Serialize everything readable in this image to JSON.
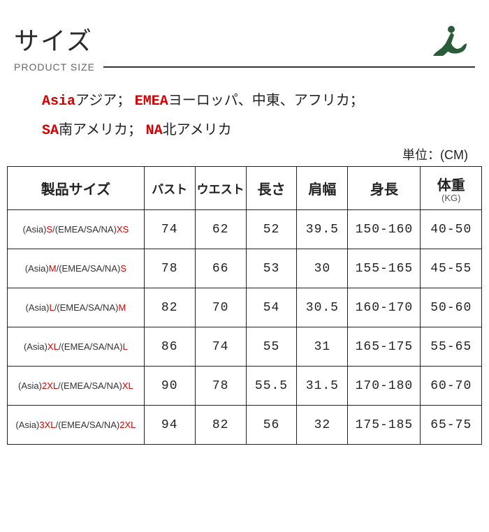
{
  "title": "サイズ",
  "subtitle": "PRODUCT SIZE",
  "regions": {
    "line1_asia_code": "Asia",
    "line1_asia_text": "アジア；",
    "line1_emea_code": "EMEA",
    "line1_emea_text": "ヨーロッパ、中東、アフリカ；",
    "line2_sa_code": "SA",
    "line2_sa_text": "南アメリカ；",
    "line2_na_code": "NA",
    "line2_na_text": "北アメリカ"
  },
  "unit_label": "単位：(CM)",
  "columns": {
    "size": "製品サイズ",
    "bust": "バスト",
    "waist": "ウエスト",
    "length": "長さ",
    "shoulder": "肩幅",
    "height": "身長",
    "weight": "体重",
    "weight_sub": "(KG)"
  },
  "rows": [
    {
      "asia": "S",
      "other": "XS",
      "bust": "74",
      "waist": "62",
      "length": "52",
      "shoulder": "39.5",
      "height": "150-160",
      "weight": "40-50"
    },
    {
      "asia": "M",
      "other": "S",
      "bust": "78",
      "waist": "66",
      "length": "53",
      "shoulder": "30",
      "height": "155-165",
      "weight": "45-55"
    },
    {
      "asia": "L",
      "other": "M",
      "bust": "82",
      "waist": "70",
      "length": "54",
      "shoulder": "30.5",
      "height": "160-170",
      "weight": "50-60"
    },
    {
      "asia": "XL",
      "other": "L",
      "bust": "86",
      "waist": "74",
      "length": "55",
      "shoulder": "31",
      "height": "165-175",
      "weight": "55-65"
    },
    {
      "asia": "2XL",
      "other": "XL",
      "bust": "90",
      "waist": "78",
      "length": "55.5",
      "shoulder": "31.5",
      "height": "170-180",
      "weight": "60-70"
    },
    {
      "asia": "3XL",
      "other": "2XL",
      "bust": "94",
      "waist": "82",
      "length": "56",
      "shoulder": "32",
      "height": "175-185",
      "weight": "65-75"
    }
  ],
  "logo_color": "#2a5c3a"
}
